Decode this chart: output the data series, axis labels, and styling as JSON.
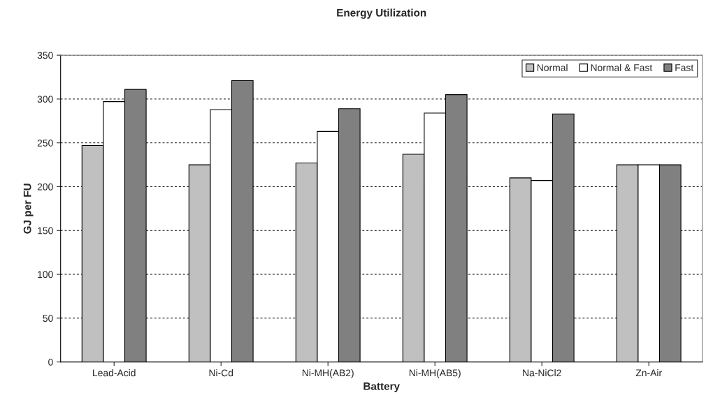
{
  "chart_data": {
    "type": "bar",
    "title": "Energy Utilization",
    "xlabel": "Battery",
    "ylabel": "GJ per FU",
    "categories": [
      "Lead-Acid",
      "Ni-Cd",
      "Ni-MH(AB2)",
      "Ni-MH(AB5)",
      "Na-NiCl2",
      "Zn-Air"
    ],
    "series": [
      {
        "name": "Normal",
        "color": "#c0c0c0",
        "values": [
          247,
          225,
          227,
          237,
          210,
          225
        ]
      },
      {
        "name": "Normal & Fast",
        "color": "#ffffff",
        "values": [
          297,
          288,
          263,
          284,
          207,
          225
        ]
      },
      {
        "name": "Fast",
        "color": "#808080",
        "values": [
          311,
          321,
          289,
          305,
          283,
          225
        ]
      }
    ],
    "ylim": [
      0,
      350
    ],
    "yticks": [
      0,
      50,
      100,
      150,
      200,
      250,
      300,
      350
    ],
    "grid": "y",
    "legend": "top right"
  }
}
